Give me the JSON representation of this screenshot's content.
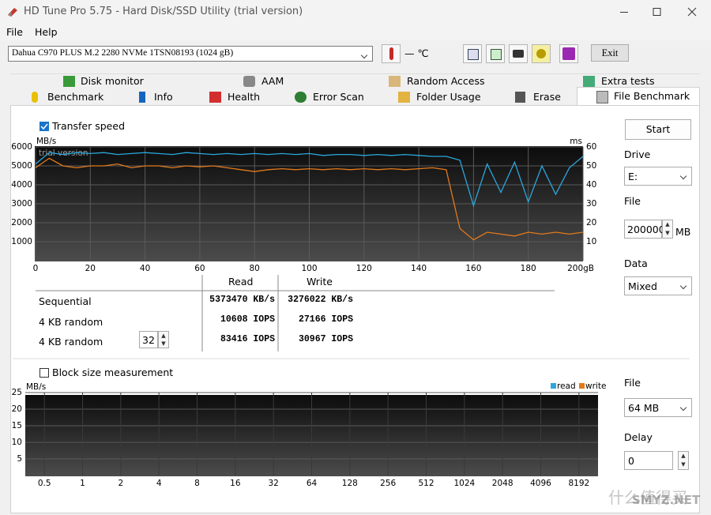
{
  "window": {
    "title": "HD Tune Pro 5.75 - Hard Disk/SSD Utility (trial version)"
  },
  "menu": [
    "File",
    "Help"
  ],
  "toolbar": {
    "drive": "Dahua C970 PLUS M.2 2280 NVMe 1TSN08193 (1024 gB)",
    "temperature": "— ℃",
    "exit": "Exit"
  },
  "tabs": {
    "row1": [
      "Disk monitor",
      "AAM",
      "Random Access",
      "Extra tests"
    ],
    "row2": [
      "Benchmark",
      "Info",
      "Health",
      "Error Scan",
      "Folder Usage",
      "Erase",
      "File Benchmark"
    ]
  },
  "file_benchmark": {
    "transfer_speed": "Transfer speed",
    "start": "Start",
    "drive_label": "Drive",
    "drive": "E:",
    "file_label": "File",
    "file_size": "200000",
    "file_unit": "MB",
    "data_label": "Data",
    "data": "Mixed",
    "results": {
      "headers": [
        "Read",
        "Write"
      ],
      "rows": [
        {
          "label": "Sequential",
          "read": "5373470 KB/s",
          "write": "3276022 KB/s"
        },
        {
          "label": "4 KB random",
          "read": "10608 IOPS",
          "write": "27166 IOPS"
        },
        {
          "label": "4 KB random",
          "queue_depth": "32",
          "read": "83416 IOPS",
          "write": "30967 IOPS"
        }
      ]
    },
    "block_size": "Block size measurement",
    "block_file_label": "File",
    "block_file": "64 MB",
    "delay_label": "Delay",
    "delay": "0"
  },
  "transfer_chart": {
    "type": "line",
    "y_label": "MB/s",
    "y2_label": "ms",
    "annotation": "trial version",
    "x": [
      0,
      5,
      10,
      15,
      20,
      25,
      30,
      35,
      40,
      45,
      50,
      55,
      60,
      65,
      70,
      75,
      80,
      85,
      90,
      95,
      100,
      105,
      110,
      115,
      120,
      125,
      130,
      135,
      140,
      145,
      150,
      155,
      160,
      165,
      170,
      175,
      180,
      185,
      190,
      195,
      200
    ],
    "series": [
      {
        "color": "#2ba7dd",
        "values": [
          5100,
          5700,
          5600,
          5700,
          5650,
          5700,
          5600,
          5650,
          5700,
          5650,
          5600,
          5700,
          5650,
          5600,
          5650,
          5600,
          5650,
          5600,
          5650,
          5600,
          5650,
          5550,
          5600,
          5600,
          5550,
          5600,
          5550,
          5600,
          5550,
          5500,
          5500,
          5300,
          2900,
          5100,
          3600,
          5200,
          3100,
          5000,
          3500,
          4900,
          5500
        ]
      },
      {
        "color": "#e37a1c",
        "values": [
          4900,
          5400,
          5000,
          4900,
          5000,
          5000,
          5100,
          4900,
          5000,
          5000,
          4900,
          5000,
          4950,
          5000,
          4900,
          4800,
          4700,
          4800,
          4850,
          4800,
          4850,
          4800,
          4850,
          4800,
          4850,
          4800,
          4850,
          4800,
          4850,
          4900,
          4800,
          1700,
          1100,
          1500,
          1400,
          1300,
          1500,
          1400,
          1500,
          1400,
          1500
        ]
      }
    ],
    "xlim": [
      0,
      200
    ],
    "ylim": [
      0,
      6000
    ],
    "y2lim": [
      0,
      60
    ],
    "xticks": [
      0,
      20,
      40,
      60,
      80,
      100,
      120,
      140,
      160,
      180,
      {
        "value": 200,
        "label": "200gB"
      }
    ],
    "yticks": [
      1000,
      2000,
      3000,
      4000,
      5000,
      6000
    ],
    "y2ticks": [
      10,
      20,
      30,
      40,
      50,
      60
    ],
    "grid": true
  },
  "block_chart": {
    "type": "line",
    "y_label": "MB/s",
    "categories": [
      "0.5",
      "1",
      "2",
      "4",
      "8",
      "16",
      "32",
      "64",
      "128",
      "256",
      "512",
      "1024",
      "2048",
      "4096",
      "8192"
    ],
    "ylim": [
      0,
      25
    ],
    "yticks": [
      5,
      10,
      15,
      20,
      25
    ],
    "legend": [
      {
        "name": "read",
        "color": "#2ba7dd"
      },
      {
        "name": "write",
        "color": "#e37a1c"
      }
    ],
    "grid": true
  },
  "watermark": [
    "什么值得买",
    "SMYZ.NET"
  ]
}
